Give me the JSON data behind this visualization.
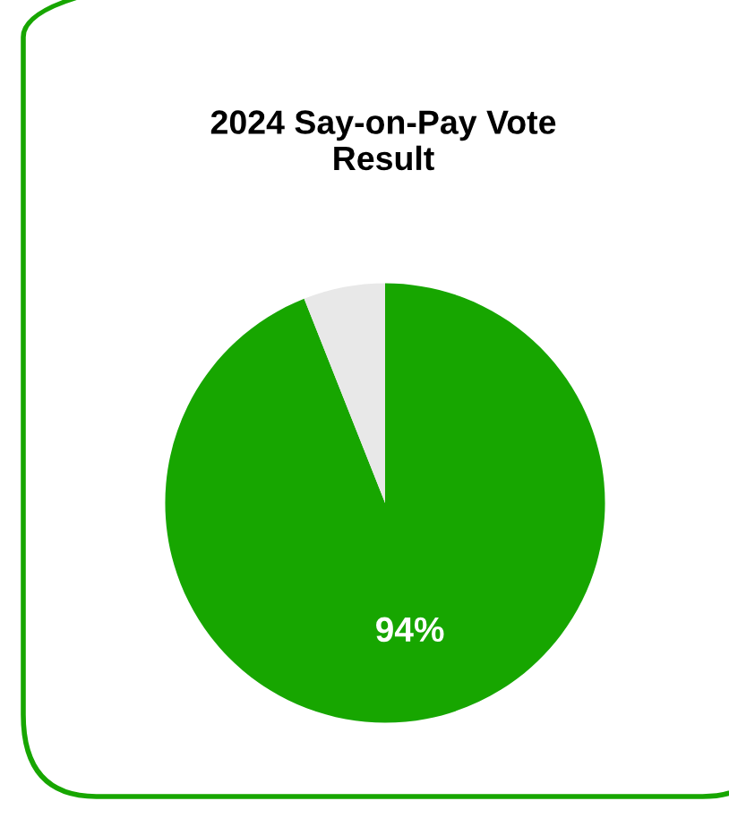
{
  "chart_data": {
    "type": "pie",
    "title": "2024 Say-on-Pay Vote\nResult",
    "categories": [
      null,
      null
    ],
    "values": [
      94,
      6
    ],
    "colors": [
      "#17a600",
      "#e8e8e8"
    ],
    "value_labels": [
      "94%",
      null
    ]
  }
}
